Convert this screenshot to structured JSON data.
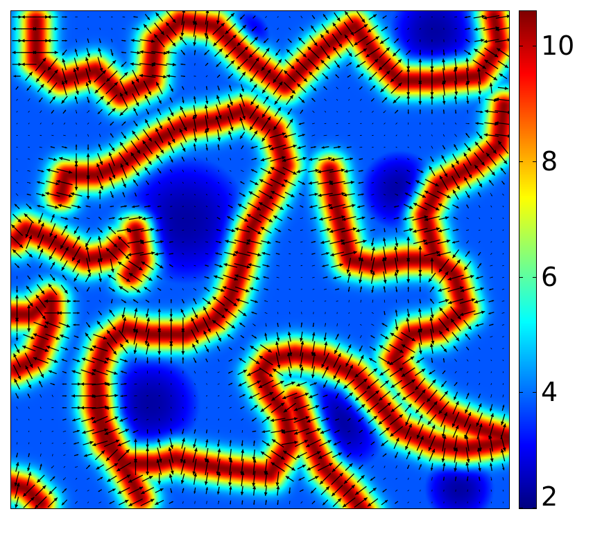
{
  "chart_data": {
    "type": "heatmap",
    "overlay": "quiver",
    "title": "",
    "xlabel": "",
    "ylabel": "",
    "x_ticks": [],
    "y_ticks": [],
    "colormap": "jet",
    "colorbar": {
      "location": "right",
      "range": [
        2,
        10.6
      ],
      "ticks": [
        2,
        4,
        6,
        8,
        10
      ],
      "tick_labels": [
        "2",
        "4",
        "6",
        "8",
        "10"
      ]
    },
    "field": {
      "description_values": {
        "background_level": 3.8,
        "inner_region_level": 2.3,
        "ridge_peak_level": 10.5
      },
      "ridges": [
        [
          [
            0.05,
            0.02
          ],
          [
            0.05,
            0.1
          ],
          [
            0.1,
            0.14
          ],
          [
            0.17,
            0.12
          ],
          [
            0.22,
            0.17
          ],
          [
            0.28,
            0.14
          ],
          [
            0.29,
            0.06
          ],
          [
            0.34,
            0.02
          ],
          [
            0.41,
            0.03
          ],
          [
            0.48,
            0.1
          ],
          [
            0.55,
            0.15
          ],
          [
            0.62,
            0.08
          ],
          [
            0.69,
            0.03
          ],
          [
            0.73,
            0.09
          ],
          [
            0.78,
            0.14
          ],
          [
            0.85,
            0.14
          ],
          [
            0.94,
            0.13
          ],
          [
            0.98,
            0.07
          ],
          [
            0.97,
            0.01
          ]
        ],
        [
          [
            0.1,
            0.37
          ],
          [
            0.11,
            0.33
          ],
          [
            0.17,
            0.33
          ],
          [
            0.22,
            0.31
          ],
          [
            0.29,
            0.26
          ],
          [
            0.35,
            0.23
          ],
          [
            0.41,
            0.22
          ],
          [
            0.47,
            0.2
          ],
          [
            0.53,
            0.24
          ],
          [
            0.55,
            0.31
          ],
          [
            0.52,
            0.37
          ],
          [
            0.48,
            0.44
          ],
          [
            0.46,
            0.52
          ],
          [
            0.44,
            0.58
          ],
          [
            0.41,
            0.62
          ],
          [
            0.35,
            0.65
          ],
          [
            0.28,
            0.65
          ],
          [
            0.23,
            0.64
          ],
          [
            0.19,
            0.67
          ]
        ],
        [
          [
            0.19,
            0.67
          ],
          [
            0.17,
            0.73
          ],
          [
            0.17,
            0.8
          ],
          [
            0.19,
            0.87
          ],
          [
            0.23,
            0.91
          ],
          [
            0.29,
            0.91
          ],
          [
            0.33,
            0.9
          ],
          [
            0.37,
            0.91
          ],
          [
            0.43,
            0.92
          ],
          [
            0.52,
            0.93
          ],
          [
            0.56,
            0.87
          ],
          [
            0.55,
            0.81
          ],
          [
            0.52,
            0.77
          ],
          [
            0.5,
            0.73
          ],
          [
            0.52,
            0.7
          ]
        ],
        [
          [
            0.17,
            0.73
          ],
          [
            0.18,
            0.82
          ],
          [
            0.21,
            0.89
          ],
          [
            0.24,
            0.94
          ],
          [
            0.26,
            0.98
          ]
        ],
        [
          [
            0.52,
            0.7
          ],
          [
            0.57,
            0.69
          ],
          [
            0.63,
            0.7
          ],
          [
            0.69,
            0.73
          ],
          [
            0.74,
            0.79
          ],
          [
            0.78,
            0.84
          ],
          [
            0.85,
            0.87
          ],
          [
            0.91,
            0.88
          ],
          [
            0.97,
            0.87
          ],
          [
            1.01,
            0.86
          ]
        ],
        [
          [
            0.57,
            0.78
          ],
          [
            0.6,
            0.86
          ],
          [
            0.63,
            0.92
          ],
          [
            0.68,
            0.97
          ],
          [
            0.71,
            1.01
          ]
        ],
        [
          [
            0.64,
            0.32
          ],
          [
            0.65,
            0.38
          ],
          [
            0.68,
            0.5
          ],
          [
            0.73,
            0.51
          ],
          [
            0.79,
            0.5
          ],
          [
            0.85,
            0.5
          ],
          [
            0.89,
            0.53
          ],
          [
            0.91,
            0.6
          ],
          [
            0.86,
            0.64
          ],
          [
            0.8,
            0.65
          ],
          [
            0.77,
            0.7
          ],
          [
            0.81,
            0.76
          ],
          [
            0.87,
            0.81
          ],
          [
            0.94,
            0.84
          ],
          [
            1.01,
            0.86
          ]
        ],
        [
          [
            0.85,
            0.49
          ],
          [
            0.83,
            0.41
          ],
          [
            0.86,
            0.35
          ],
          [
            0.93,
            0.31
          ],
          [
            0.98,
            0.27
          ],
          [
            0.99,
            0.19
          ]
        ],
        [
          [
            0.01,
            0.46
          ],
          [
            0.03,
            0.44
          ],
          [
            0.08,
            0.46
          ],
          [
            0.15,
            0.5
          ],
          [
            0.2,
            0.49
          ],
          [
            0.22,
            0.47
          ]
        ],
        [
          [
            -0.01,
            0.61
          ],
          [
            0.04,
            0.61
          ],
          [
            0.08,
            0.58
          ],
          [
            0.08,
            0.62
          ],
          [
            0.05,
            0.7
          ],
          [
            0.01,
            0.72
          ]
        ],
        [
          [
            -0.01,
            0.95
          ],
          [
            0.03,
            0.96
          ],
          [
            0.06,
            0.99
          ]
        ],
        [
          [
            0.24,
            0.53
          ],
          [
            0.26,
            0.5
          ],
          [
            0.25,
            0.44
          ]
        ]
      ]
    }
  }
}
